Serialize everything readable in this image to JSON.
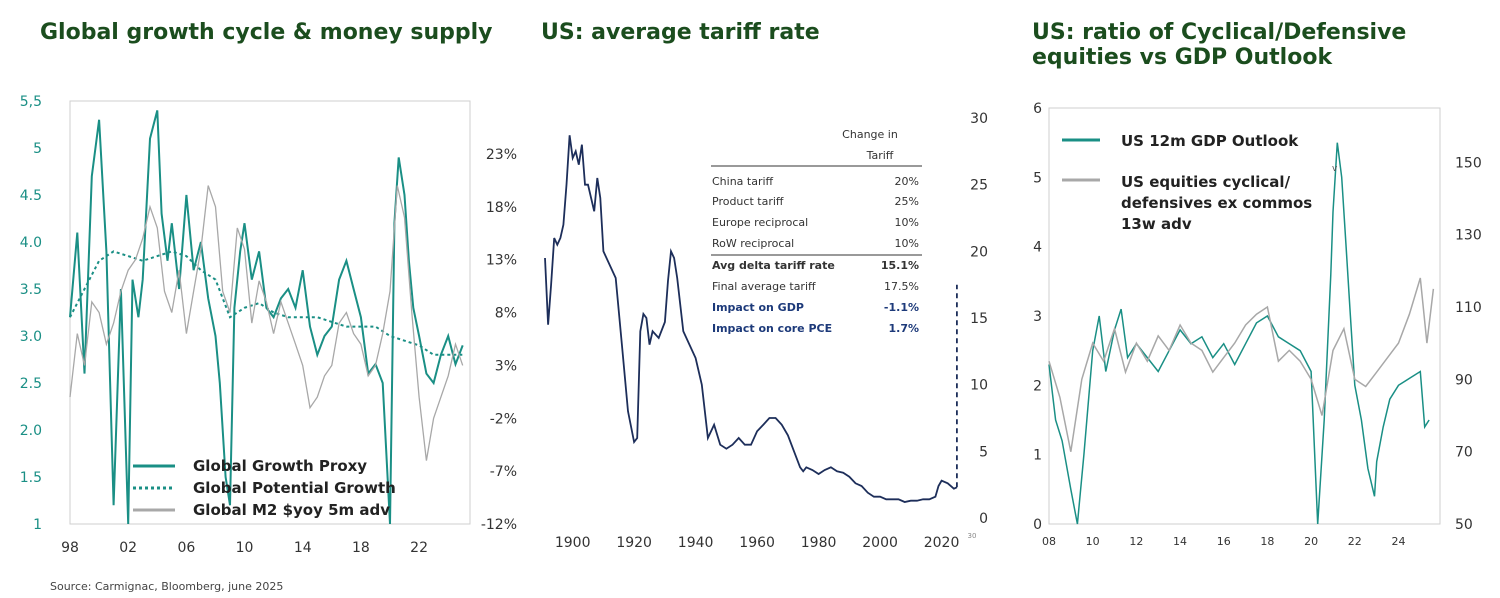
{
  "colors": {
    "teal": "#1a8f85",
    "grey": "#a8a8a8",
    "navy": "#1d2e5a",
    "title": "#1b4d1e"
  },
  "source": "Source: Carmignac, Bloomberg, june 2025",
  "chart_data": [
    {
      "type": "line",
      "title": "Global growth cycle & money supply",
      "left_axis_ticks": [
        "5,5",
        "5",
        "4.5",
        "4.0",
        "3.5",
        "3.0",
        "2.5",
        "2.0",
        "1.5",
        "1"
      ],
      "right_axis_ticks": [
        "23%",
        "18%",
        "13%",
        "8%",
        "3%",
        "-2%",
        "-7%",
        "-12%"
      ],
      "x_ticks": [
        "98",
        "02",
        "06",
        "10",
        "14",
        "18",
        "22"
      ],
      "ylim_left": [
        1,
        5.5
      ],
      "ylim_right": [
        -12,
        28
      ],
      "xlim": [
        1998,
        2025.5
      ],
      "legend": [
        "Global Growth Proxy",
        "Global Potential Growth",
        "Global M2 $yoy 5m adv"
      ],
      "series": [
        {
          "name": "Global Growth Proxy",
          "axis": "left",
          "style": "solid",
          "color": "teal",
          "x": [
            1998,
            1998.5,
            1999,
            1999.5,
            2000,
            2000.5,
            2001,
            2001.5,
            2002,
            2002.3,
            2002.7,
            2003,
            2003.5,
            2004,
            2004.3,
            2004.7,
            2005,
            2005.5,
            2006,
            2006.5,
            2007,
            2007.5,
            2008,
            2008.3,
            2008.7,
            2009,
            2009.3,
            2009.7,
            2010,
            2010.5,
            2011,
            2011.5,
            2012,
            2012.5,
            2013,
            2013.5,
            2014,
            2014.5,
            2015,
            2015.5,
            2016,
            2016.5,
            2017,
            2017.5,
            2018,
            2018.5,
            2019,
            2019.5,
            2020,
            2020.3,
            2020.6,
            2021,
            2021.3,
            2021.6,
            2022,
            2022.5,
            2023,
            2023.5,
            2024,
            2024.5,
            2025
          ],
          "values": [
            3.2,
            4.1,
            2.6,
            4.7,
            5.3,
            3.9,
            1.2,
            3.5,
            1.0,
            3.6,
            3.2,
            3.6,
            5.1,
            5.4,
            4.3,
            3.8,
            4.2,
            3.5,
            4.5,
            3.7,
            4.0,
            3.4,
            3.0,
            2.5,
            1.5,
            1.2,
            3.3,
            3.9,
            4.2,
            3.6,
            3.9,
            3.3,
            3.2,
            3.4,
            3.5,
            3.3,
            3.7,
            3.1,
            2.8,
            3.0,
            3.1,
            3.6,
            3.8,
            3.5,
            3.2,
            2.6,
            2.7,
            2.5,
            1.0,
            4.2,
            4.9,
            4.5,
            3.8,
            3.3,
            3.0,
            2.6,
            2.5,
            2.8,
            3.0,
            2.7,
            2.9
          ]
        },
        {
          "name": "Global Potential Growth",
          "axis": "left",
          "style": "dotted",
          "color": "teal",
          "x": [
            1998,
            1999,
            2000,
            2001,
            2002,
            2003,
            2004,
            2005,
            2006,
            2007,
            2008,
            2009,
            2010,
            2011,
            2012,
            2013,
            2014,
            2015,
            2016,
            2017,
            2018,
            2019,
            2020,
            2021,
            2022,
            2023,
            2024,
            2025
          ],
          "values": [
            3.2,
            3.5,
            3.8,
            3.9,
            3.85,
            3.8,
            3.85,
            3.9,
            3.85,
            3.7,
            3.6,
            3.2,
            3.3,
            3.35,
            3.25,
            3.2,
            3.2,
            3.2,
            3.15,
            3.1,
            3.1,
            3.1,
            3.0,
            2.95,
            2.9,
            2.8,
            2.8,
            2.8
          ]
        },
        {
          "name": "Global M2 $yoy 5m adv",
          "axis": "right",
          "style": "solid",
          "color": "grey",
          "x": [
            1998,
            1998.5,
            1999,
            1999.5,
            2000,
            2000.5,
            2001,
            2001.5,
            2002,
            2002.5,
            2003,
            2003.5,
            2004,
            2004.5,
            2005,
            2005.5,
            2006,
            2006.5,
            2007,
            2007.5,
            2008,
            2008.5,
            2009,
            2009.5,
            2010,
            2010.5,
            2011,
            2011.5,
            2012,
            2012.5,
            2013,
            2013.5,
            2014,
            2014.5,
            2015,
            2015.5,
            2016,
            2016.5,
            2017,
            2017.5,
            2018,
            2018.5,
            2019,
            2019.5,
            2020,
            2020.5,
            2021,
            2021.5,
            2022,
            2022.5,
            2023,
            2023.5,
            2024,
            2024.5,
            2025
          ],
          "values": [
            0,
            6,
            3,
            9,
            8,
            5,
            7,
            10,
            12,
            13,
            15,
            18,
            16,
            10,
            8,
            12,
            6,
            10,
            14,
            20,
            18,
            10,
            8,
            16,
            14,
            7,
            11,
            9,
            6,
            9,
            7,
            5,
            3,
            -1,
            0,
            2,
            3,
            7,
            8,
            6,
            5,
            2,
            3,
            6,
            10,
            20,
            17,
            8,
            0,
            -6,
            -2,
            0,
            2,
            5,
            3
          ]
        }
      ]
    },
    {
      "type": "line",
      "title": "US: average tariff rate",
      "y_ticks": [
        "30",
        "25",
        "20",
        "15",
        "10",
        "5",
        "0"
      ],
      "x_ticks": [
        "1900",
        "1920",
        "1940",
        "1960",
        "1980",
        "2000",
        "2020"
      ],
      "ylim": [
        0,
        30
      ],
      "xlim": [
        1891,
        2026
      ],
      "series": [
        {
          "name": "US average tariff rate",
          "style": "solid",
          "color": "navy",
          "x": [
            1891,
            1892,
            1893,
            1894,
            1895,
            1896,
            1897,
            1898,
            1899,
            1900,
            1901,
            1902,
            1903,
            1904,
            1905,
            1906,
            1907,
            1908,
            1909,
            1910,
            1912,
            1914,
            1916,
            1918,
            1920,
            1921,
            1922,
            1923,
            1924,
            1925,
            1926,
            1928,
            1930,
            1931,
            1932,
            1933,
            1934,
            1936,
            1938,
            1940,
            1942,
            1944,
            1946,
            1948,
            1950,
            1952,
            1954,
            1956,
            1958,
            1960,
            1962,
            1964,
            1966,
            1968,
            1970,
            1972,
            1974,
            1975,
            1976,
            1978,
            1980,
            1982,
            1984,
            1986,
            1988,
            1990,
            1992,
            1994,
            1996,
            1998,
            2000,
            2002,
            2004,
            2006,
            2008,
            2010,
            2012,
            2014,
            2016,
            2018,
            2019,
            2020,
            2022,
            2024,
            2025
          ],
          "values": [
            19.5,
            14.5,
            17.5,
            21,
            20.5,
            21,
            22,
            25,
            28.7,
            27,
            27.5,
            26.5,
            28,
            25,
            25,
            24,
            23,
            25.5,
            24,
            20,
            19,
            18,
            13,
            8,
            5.7,
            6,
            14,
            15.3,
            15,
            13,
            14,
            13.5,
            14.7,
            17.8,
            20,
            19.5,
            18,
            14,
            13,
            12,
            10,
            6,
            7,
            5.5,
            5.2,
            5.5,
            6,
            5.5,
            5.5,
            6.5,
            7,
            7.5,
            7.5,
            7,
            6.2,
            5,
            3.8,
            3.5,
            3.8,
            3.6,
            3.3,
            3.6,
            3.8,
            3.5,
            3.4,
            3.1,
            2.6,
            2.4,
            1.9,
            1.6,
            1.6,
            1.4,
            1.4,
            1.4,
            1.2,
            1.3,
            1.3,
            1.4,
            1.4,
            1.6,
            2.4,
            2.8,
            2.6,
            2.2,
            2.3
          ]
        },
        {
          "name": "Projected tariff",
          "style": "dashed",
          "color": "navy",
          "x": [
            2025,
            2025
          ],
          "values": [
            2.3,
            17.5
          ]
        }
      ],
      "table": {
        "header": [
          "Change in",
          "Tariff"
        ],
        "rows": [
          {
            "label": "China tariff",
            "value": "20%",
            "style": "normal"
          },
          {
            "label": "Product tariff",
            "value": "25%",
            "style": "normal"
          },
          {
            "label": "Europe reciprocal",
            "value": "10%",
            "style": "normal"
          },
          {
            "label": "RoW reciprocal",
            "value": "10%",
            "style": "normal"
          },
          {
            "label": "Avg delta tariff rate",
            "value": "15.1%",
            "style": "bold"
          },
          {
            "label": "Final average tariff",
            "value": "17.5%",
            "style": "normal"
          },
          {
            "label": "Impact on GDP",
            "value": "-1.1%",
            "style": "blue"
          },
          {
            "label": "Impact on core PCE",
            "value": "1.7%",
            "style": "blue"
          }
        ]
      },
      "stray_marks": [
        "30"
      ]
    },
    {
      "type": "line",
      "title": "US: ratio of Cyclical/Defensive equities vs GDP Outlook",
      "left_axis_ticks": [
        "6",
        "5",
        "4",
        "3",
        "2",
        "1",
        "0"
      ],
      "right_axis_ticks": [
        "150",
        "130",
        "110",
        "90",
        "70",
        "50"
      ],
      "x_ticks": [
        "08",
        "10",
        "12",
        "14",
        "16",
        "18",
        "20",
        "22",
        "24"
      ],
      "ylim_left": [
        0,
        6
      ],
      "ylim_right": [
        50,
        165
      ],
      "xlim": [
        2008,
        2025.9
      ],
      "legend": [
        "US 12m GDP Outlook",
        "US equities cyclical/ defensives ex commos 13w adv"
      ],
      "stray_marks": [
        "v"
      ],
      "series": [
        {
          "name": "US 12m GDP Outlook",
          "axis": "left",
          "style": "solid",
          "color": "teal",
          "x": [
            2008,
            2008.3,
            2008.6,
            2009,
            2009.3,
            2009.6,
            2010,
            2010.3,
            2010.6,
            2011,
            2011.3,
            2011.6,
            2012,
            2012.5,
            2013,
            2013.5,
            2014,
            2014.5,
            2015,
            2015.5,
            2016,
            2016.5,
            2017,
            2017.5,
            2018,
            2018.5,
            2019,
            2019.5,
            2020,
            2020.3,
            2020.6,
            2020.9,
            2021,
            2021.2,
            2021.4,
            2021.6,
            2021.8,
            2022,
            2022.3,
            2022.6,
            2022.9,
            2023,
            2023.3,
            2023.6,
            2024,
            2024.5,
            2025,
            2025.2,
            2025.4
          ],
          "values": [
            2.3,
            1.5,
            1.2,
            0.5,
            0,
            1.0,
            2.5,
            3.0,
            2.2,
            2.8,
            3.1,
            2.4,
            2.6,
            2.4,
            2.2,
            2.5,
            2.8,
            2.6,
            2.7,
            2.4,
            2.6,
            2.3,
            2.6,
            2.9,
            3.0,
            2.7,
            2.6,
            2.5,
            2.2,
            0,
            1.5,
            3.6,
            4.5,
            5.5,
            5.0,
            4.0,
            3.0,
            2.0,
            1.5,
            0.8,
            0.4,
            0.9,
            1.4,
            1.8,
            2.0,
            2.1,
            2.2,
            1.4,
            1.5
          ]
        },
        {
          "name": "US equities cyclical/ defensives ex commos 13w adv",
          "axis": "right",
          "style": "solid",
          "color": "grey",
          "x": [
            2008,
            2008.5,
            2009,
            2009.5,
            2010,
            2010.5,
            2011,
            2011.5,
            2012,
            2012.5,
            2013,
            2013.5,
            2014,
            2014.5,
            2015,
            2015.5,
            2016,
            2016.5,
            2017,
            2017.5,
            2018,
            2018.5,
            2019,
            2019.5,
            2020,
            2020.5,
            2021,
            2021.5,
            2022,
            2022.5,
            2023,
            2023.5,
            2024,
            2024.5,
            2025,
            2025.3,
            2025.6
          ],
          "values": [
            95,
            85,
            70,
            90,
            100,
            95,
            104,
            92,
            100,
            95,
            102,
            98,
            105,
            100,
            98,
            92,
            96,
            100,
            105,
            108,
            110,
            95,
            98,
            95,
            90,
            80,
            98,
            104,
            90,
            88,
            92,
            96,
            100,
            108,
            118,
            100,
            115
          ]
        }
      ]
    }
  ]
}
